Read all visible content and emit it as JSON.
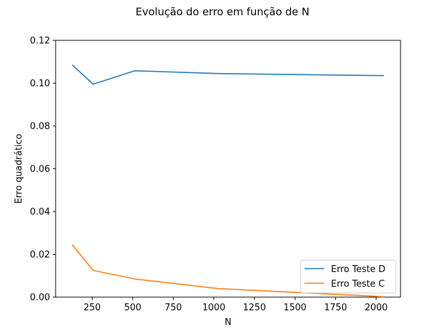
{
  "chart_data": {
    "type": "line",
    "title": "Evolução do erro em função de N",
    "xlabel": "N",
    "ylabel": "Erro quadrático",
    "xlim": [
      25,
      2150
    ],
    "ylim": [
      0,
      0.12
    ],
    "xticks": [
      250,
      500,
      750,
      1000,
      1250,
      1500,
      1750,
      2000
    ],
    "xtick_labels": [
      "250",
      "500",
      "750",
      "1000",
      "1250",
      "1500",
      "1750",
      "2000"
    ],
    "yticks": [
      0,
      0.02,
      0.04,
      0.06,
      0.08,
      0.1,
      0.12
    ],
    "ytick_labels": [
      "0.00",
      "0.02",
      "0.04",
      "0.06",
      "0.08",
      "0.10",
      "0.12"
    ],
    "grid": false,
    "legend_position": "bottom-right",
    "series": [
      {
        "name": "Erro Teste D",
        "color": "#1f77b4",
        "x": [
          128,
          256,
          512,
          1024,
          2048
        ],
        "y": [
          0.1085,
          0.0995,
          0.1058,
          0.1045,
          0.1035
        ]
      },
      {
        "name": "Erro Teste C",
        "color": "#ff7f0e",
        "x": [
          128,
          256,
          512,
          1024,
          2048
        ],
        "y": [
          0.0245,
          0.0125,
          0.0085,
          0.004,
          0.0002
        ]
      }
    ]
  }
}
